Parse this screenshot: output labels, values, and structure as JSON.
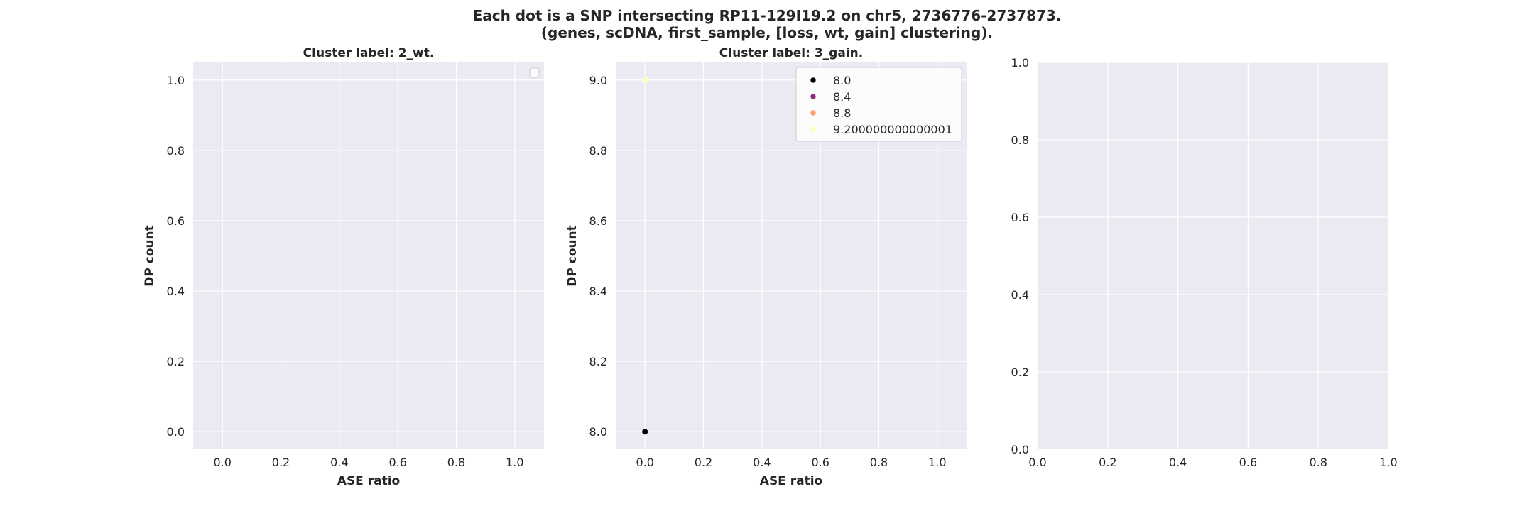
{
  "figure": {
    "title_line1": "Each dot is a SNP intersecting RP11-129I19.2 on chr5, 2736776-2737873.",
    "title_line2": "(genes, scDNA, first_sample, [loss, wt, gain] clustering)."
  },
  "chart_data": [
    {
      "type": "scatter",
      "title": "Cluster label: 2_wt.",
      "xlabel": "ASE ratio",
      "ylabel": "DP count",
      "xlim": [
        -0.1,
        1.1
      ],
      "ylim": [
        -0.05,
        1.05
      ],
      "xticks": [
        "0.0",
        "0.2",
        "0.4",
        "0.6",
        "0.8",
        "1.0"
      ],
      "yticks": [
        "0.0",
        "0.2",
        "0.4",
        "0.6",
        "0.8",
        "1.0"
      ],
      "grid": true,
      "legend": {
        "position": "top-right",
        "entries": []
      },
      "points": []
    },
    {
      "type": "scatter",
      "title": "Cluster label: 3_gain.",
      "xlabel": "ASE ratio",
      "ylabel": "DP count",
      "xlim": [
        -0.1,
        1.1
      ],
      "ylim": [
        7.95,
        9.05
      ],
      "xticks": [
        "0.0",
        "0.2",
        "0.4",
        "0.6",
        "0.8",
        "1.0"
      ],
      "yticks": [
        "8.0",
        "8.2",
        "8.4",
        "8.6",
        "8.8",
        "9.0"
      ],
      "grid": true,
      "legend": {
        "position": "top-right",
        "entries": [
          {
            "label": "8.0",
            "color": "#000004"
          },
          {
            "label": "8.4",
            "color": "#8c2981"
          },
          {
            "label": "8.8",
            "color": "#fe9f6d"
          },
          {
            "label": "9.200000000000001",
            "color": "#fcfdbf"
          }
        ]
      },
      "points": [
        {
          "x": 0.0,
          "y": 8.0,
          "color": "#000004"
        },
        {
          "x": 0.0,
          "y": 9.0,
          "color": "#fcfdbf"
        }
      ]
    },
    {
      "type": "scatter",
      "title": "",
      "xlabel": "",
      "ylabel": "",
      "xlim": [
        0.0,
        1.0
      ],
      "ylim": [
        0.0,
        1.0
      ],
      "xticks": [
        "0.0",
        "0.2",
        "0.4",
        "0.6",
        "0.8",
        "1.0"
      ],
      "yticks": [
        "0.0",
        "0.2",
        "0.4",
        "0.6",
        "0.8",
        "1.0"
      ],
      "grid": true,
      "points": []
    }
  ]
}
